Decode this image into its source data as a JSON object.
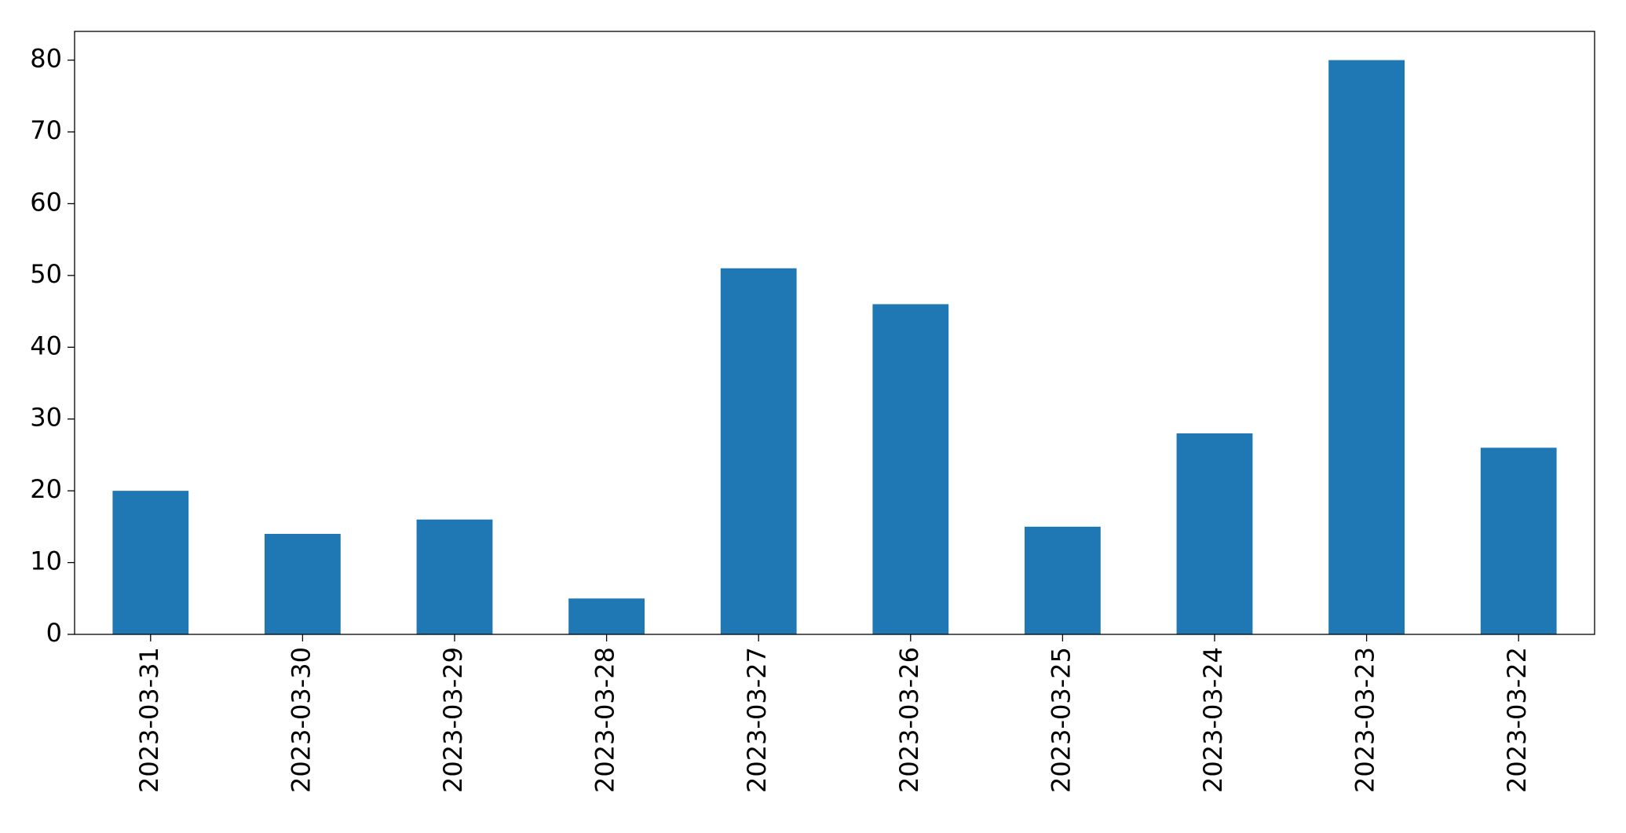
{
  "chart_data": {
    "type": "bar",
    "categories": [
      "2023-03-31",
      "2023-03-30",
      "2023-03-29",
      "2023-03-28",
      "2023-03-27",
      "2023-03-26",
      "2023-03-25",
      "2023-03-24",
      "2023-03-23",
      "2023-03-22"
    ],
    "values": [
      20,
      14,
      16,
      5,
      51,
      46,
      15,
      28,
      80,
      26
    ],
    "color": "#1f77b4",
    "ylim": [
      0,
      84
    ],
    "yticks": [
      0,
      10,
      20,
      30,
      40,
      50,
      60,
      70,
      80
    ],
    "grid": false
  }
}
